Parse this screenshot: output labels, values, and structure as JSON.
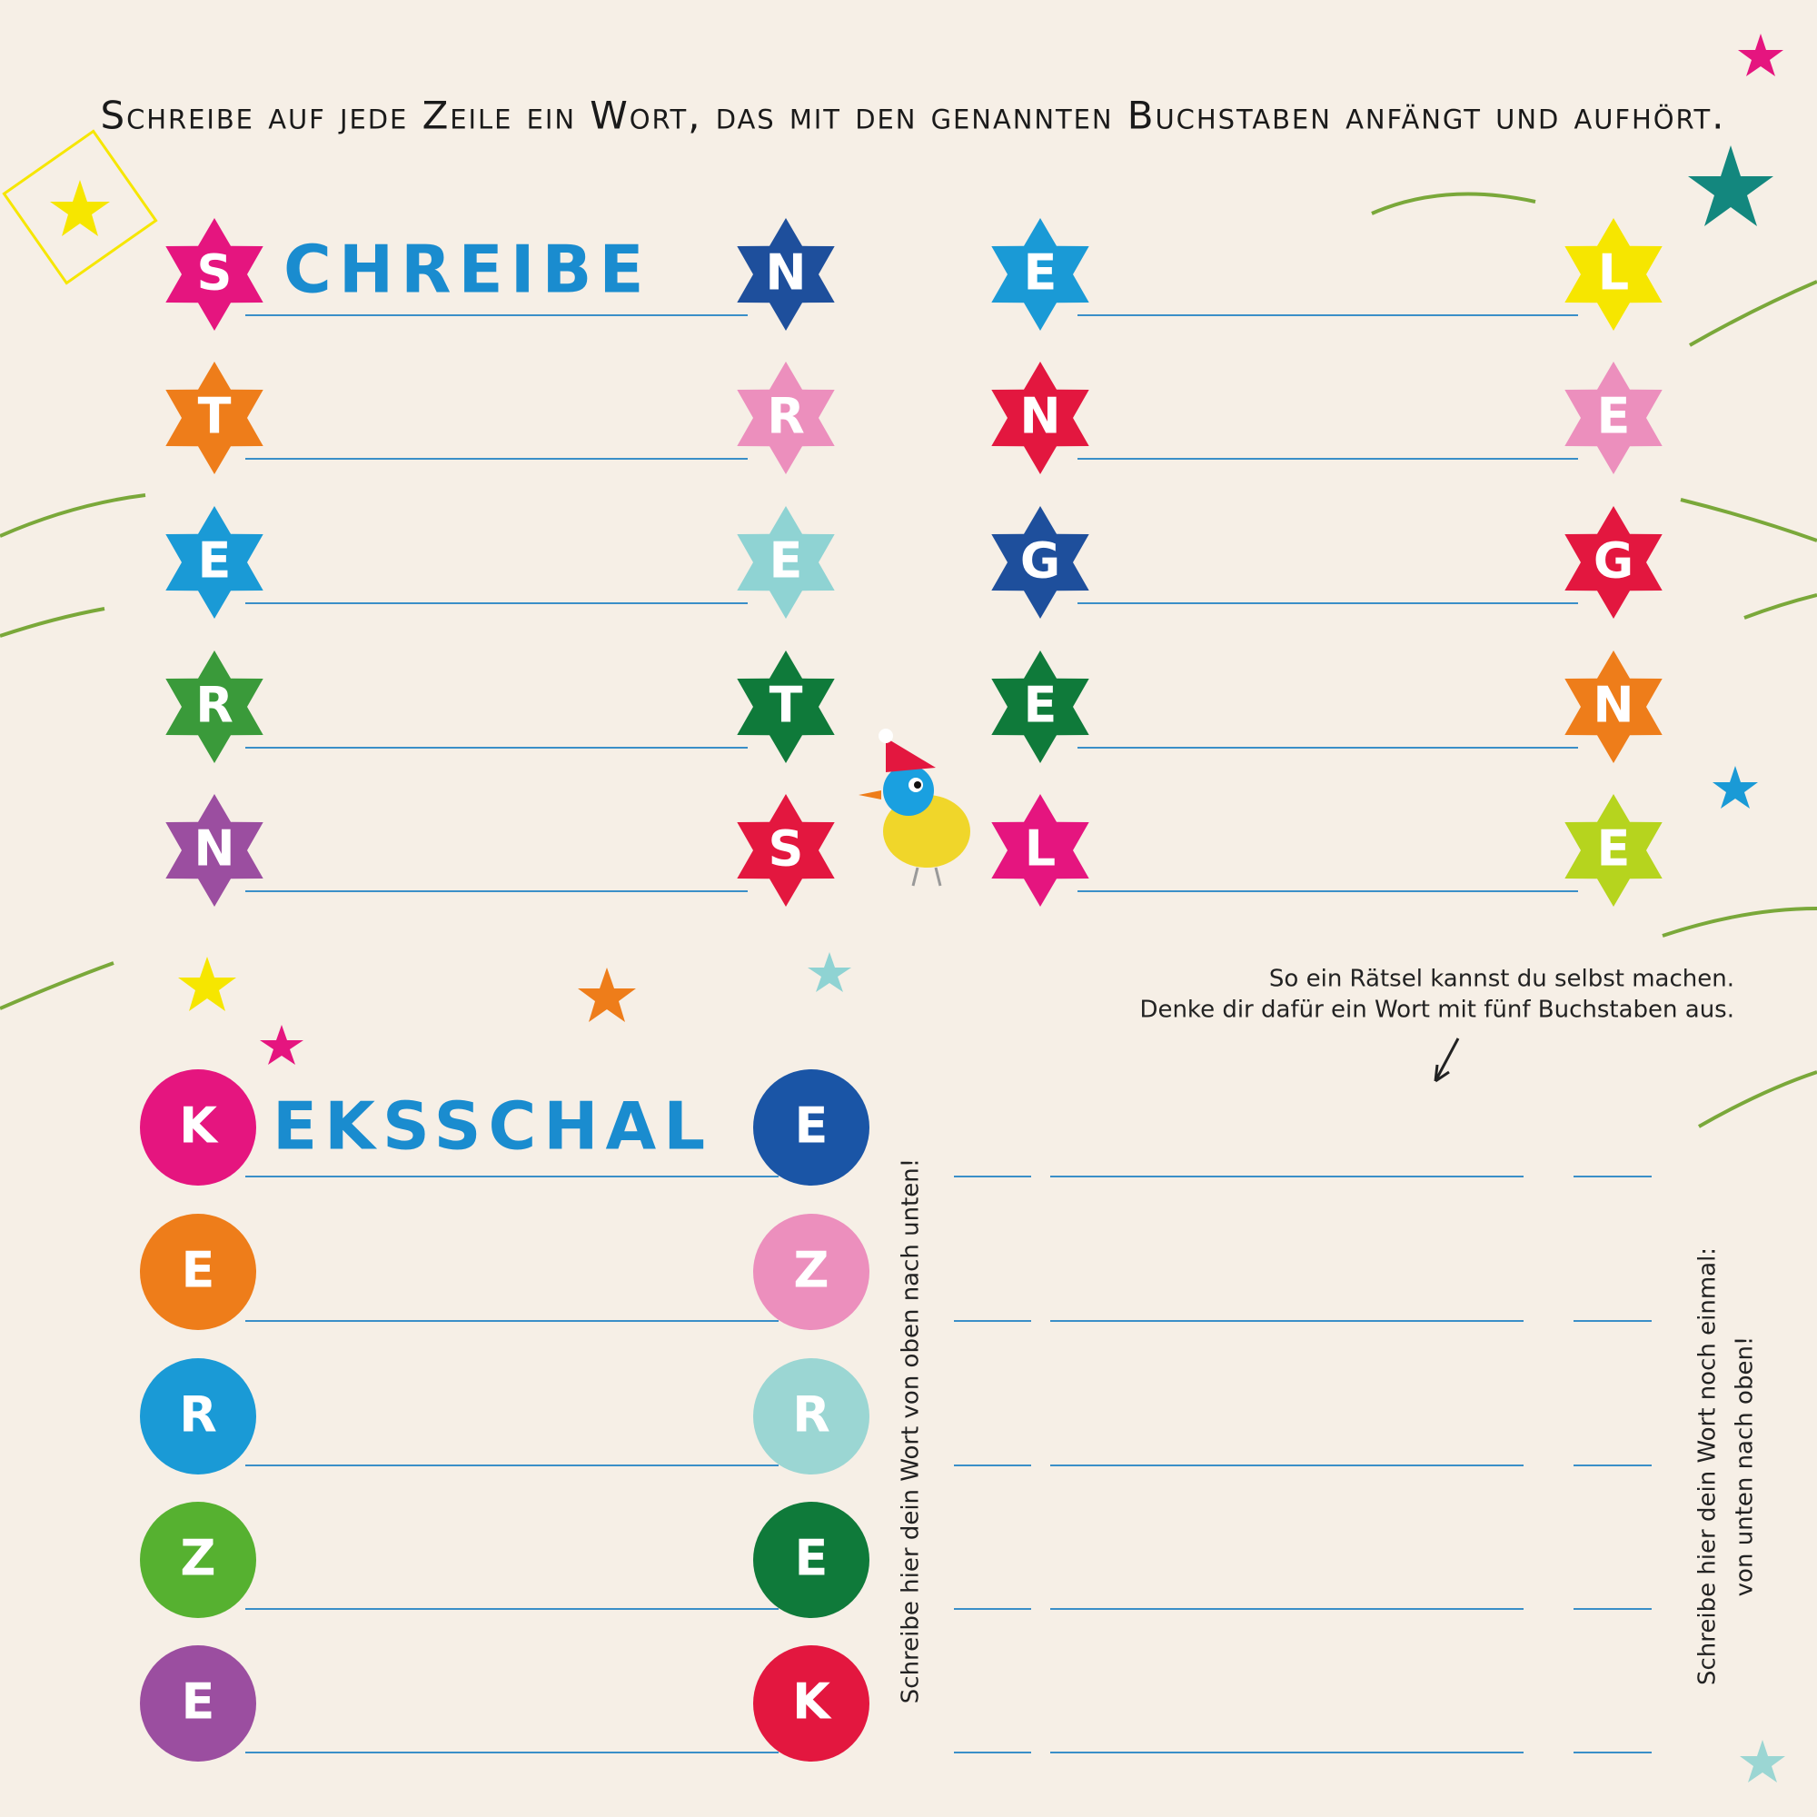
{
  "instruction": "Schreibe auf jede Zeile ein Wort, das mit den genannten Buchstaben anfängt und aufhört.",
  "star_puzzle": {
    "columns": [
      {
        "rows": [
          {
            "start": "S",
            "start_color": "#e5157f",
            "end": "N",
            "end_color": "#1e4f9c",
            "example": "CHREIBE"
          },
          {
            "start": "T",
            "start_color": "#ee7d1a",
            "end": "R",
            "end_color": "#ec8fbd"
          },
          {
            "start": "E",
            "start_color": "#1a9ad6",
            "end": "E",
            "end_color": "#8fd3d3"
          },
          {
            "start": "R",
            "start_color": "#3a9a3a",
            "end": "T",
            "end_color": "#0f7a3a"
          },
          {
            "start": "N",
            "start_color": "#9b4ea0",
            "end": "S",
            "end_color": "#e3173f"
          }
        ]
      },
      {
        "rows": [
          {
            "start": "E",
            "start_color": "#1a9ad6",
            "end": "L",
            "end_color": "#f6e600"
          },
          {
            "start": "N",
            "start_color": "#e3173f",
            "end": "E",
            "end_color": "#ec8fbd"
          },
          {
            "start": "G",
            "start_color": "#1e4f9c",
            "end": "G",
            "end_color": "#e3173f"
          },
          {
            "start": "E",
            "start_color": "#0f7a3a",
            "end": "N",
            "end_color": "#ee7d1a"
          },
          {
            "start": "L",
            "start_color": "#e5157f",
            "end": "E",
            "end_color": "#b6d41e"
          }
        ]
      }
    ]
  },
  "circle_puzzle": {
    "rows": [
      {
        "start": "K",
        "start_color": "#e5157f",
        "end": "E",
        "end_color": "#1a55a6",
        "example": "EKSSCHAL"
      },
      {
        "start": "E",
        "start_color": "#ee7d1a",
        "end": "Z",
        "end_color": "#ec8fbd"
      },
      {
        "start": "R",
        "start_color": "#1a9ad6",
        "end": "R",
        "end_color": "#9bd6d3"
      },
      {
        "start": "Z",
        "start_color": "#56b130",
        "end": "E",
        "end_color": "#0f7a3a"
      },
      {
        "start": "E",
        "start_color": "#9b4ea0",
        "end": "K",
        "end_color": "#e3173f"
      }
    ]
  },
  "hint": [
    "So ein Rätsel kannst du selbst machen.",
    "Denke dir dafür ein Wort mit fünf Buchstaben aus."
  ],
  "down_note": "Schreibe hier dein Wort von oben nach unten!",
  "up_note": [
    "Schreibe hier dein Wort noch einmal:",
    "von unten nach oben!"
  ]
}
